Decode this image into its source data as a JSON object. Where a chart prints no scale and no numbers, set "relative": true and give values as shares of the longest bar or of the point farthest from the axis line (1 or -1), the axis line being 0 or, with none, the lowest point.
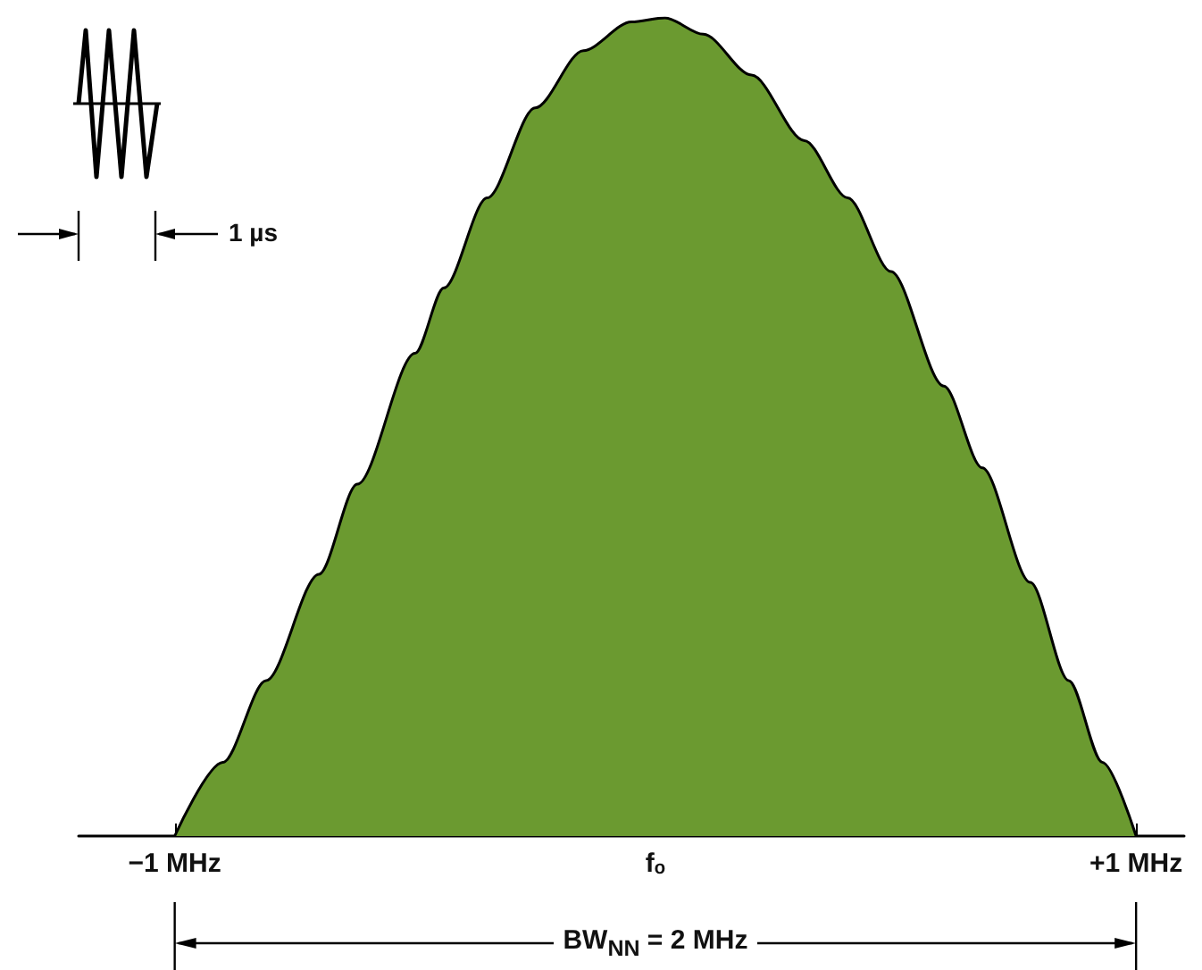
{
  "chart_data": {
    "type": "area",
    "relative": true,
    "x": [
      -1,
      -0.9,
      -0.81,
      -0.7,
      -0.62,
      -0.5,
      -0.44,
      -0.35,
      -0.25,
      -0.15,
      -0.05,
      0.02,
      0.1,
      0.2,
      0.31,
      0.4,
      0.49,
      0.6,
      0.68,
      0.78,
      0.86,
      0.93,
      1
    ],
    "series": [
      {
        "color": "#6b9a30",
        "values": [
          0,
          0.09,
          0.19,
          0.32,
          0.43,
          0.59,
          0.67,
          0.78,
          0.89,
          0.96,
          0.995,
          1,
          0.98,
          0.93,
          0.85,
          0.78,
          0.69,
          0.55,
          0.45,
          0.31,
          0.19,
          0.09,
          0
        ]
      }
    ],
    "xlim": [
      -1.2,
      1.1
    ],
    "xticks": [
      {
        "value": -1,
        "label": "−1 MHz"
      },
      {
        "value": 0,
        "label": "fₒ"
      },
      {
        "value": 1,
        "label": "+1 MHz"
      }
    ],
    "annotations": [
      "1 µs",
      "BW$_{NN}$ = 2 MHz"
    ],
    "marker": "none",
    "line_style": "solid",
    "grid": false
  }
}
